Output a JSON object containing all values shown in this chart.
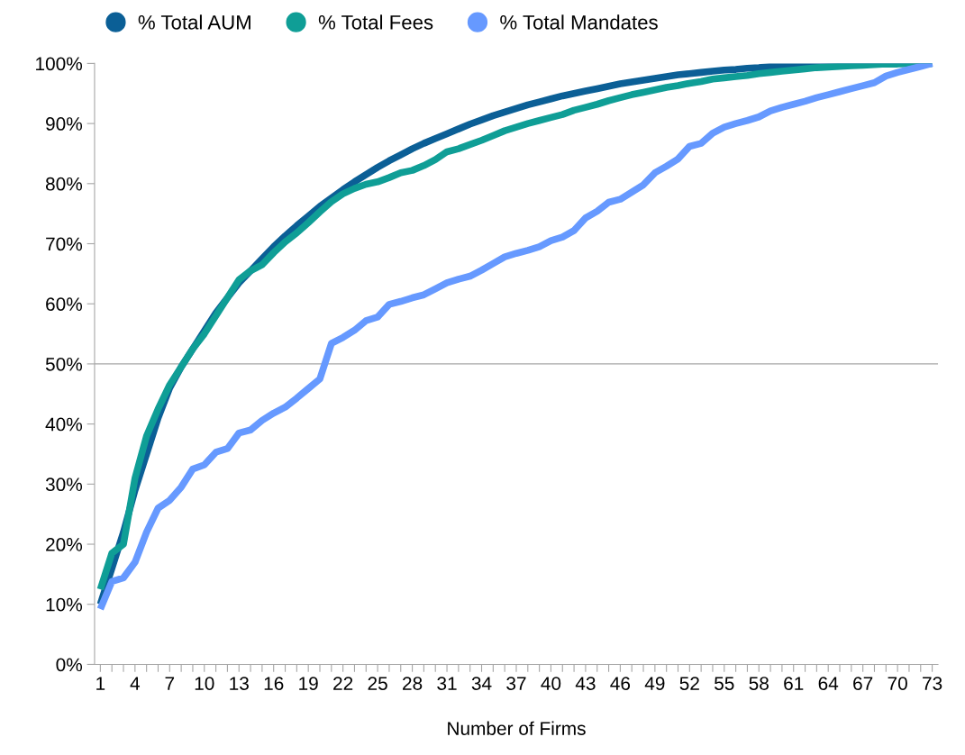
{
  "chart_data": {
    "type": "line",
    "xlabel": "Number of Firms",
    "categories": [
      "1",
      null,
      null,
      "4",
      null,
      null,
      "7",
      null,
      null,
      "10",
      null,
      null,
      "13",
      null,
      null,
      "16",
      null,
      null,
      "19",
      null,
      null,
      "22",
      null,
      null,
      "25",
      null,
      null,
      "28",
      null,
      null,
      "31",
      null,
      null,
      "34",
      null,
      null,
      "37",
      null,
      null,
      "40",
      null,
      null,
      "43",
      null,
      null,
      "46",
      null,
      null,
      "49",
      null,
      null,
      "52",
      null,
      null,
      "55",
      null,
      null,
      "58",
      null,
      null,
      "61",
      null,
      null,
      "64",
      null,
      null,
      "67",
      null,
      null,
      "70",
      null,
      null,
      "73"
    ],
    "ylim": [
      0,
      100
    ],
    "yticks": [
      {
        "value": 0,
        "label": "0%"
      },
      {
        "value": 10,
        "label": "10%"
      },
      {
        "value": 20,
        "label": "20%"
      },
      {
        "value": 30,
        "label": "30%"
      },
      {
        "value": 40,
        "label": "40%"
      },
      {
        "value": 50,
        "label": "50%"
      },
      {
        "value": 60,
        "label": "60%"
      },
      {
        "value": 70,
        "label": "70%"
      },
      {
        "value": 80,
        "label": "80%"
      },
      {
        "value": 90,
        "label": "90%"
      },
      {
        "value": 100,
        "label": "100%"
      }
    ],
    "grid": false,
    "legend": "top left",
    "marker": "none",
    "line_style": "solid",
    "ref_lines": [
      {
        "axis": "y",
        "value": 50,
        "color": "#a6a6a6"
      }
    ],
    "series": [
      {
        "name": "% Total AUM",
        "color": "#0b5f96",
        "values": [
          10,
          16,
          22,
          29,
          35,
          41,
          46,
          49.5,
          52.5,
          55.5,
          58.5,
          61,
          63.5,
          65.5,
          67.5,
          69.5,
          71.3,
          73,
          74.6,
          76.2,
          77.6,
          79,
          80.3,
          81.5,
          82.7,
          83.8,
          84.8,
          85.8,
          86.7,
          87.5,
          88.3,
          89.1,
          89.9,
          90.6,
          91.3,
          91.9,
          92.5,
          93.1,
          93.6,
          94.1,
          94.6,
          95,
          95.4,
          95.8,
          96.2,
          96.6,
          96.9,
          97.2,
          97.5,
          97.8,
          98.1,
          98.3,
          98.5,
          98.7,
          98.9,
          99,
          99.2,
          99.3,
          99.5,
          99.6,
          99.7,
          99.7,
          99.8,
          99.8,
          99.8,
          99.9,
          99.9,
          99.9,
          99.9,
          100,
          100,
          100,
          100
        ]
      },
      {
        "name": "% Total Fees",
        "color": "#0f9e96",
        "values": [
          12.5,
          18.5,
          20,
          31,
          38,
          42.5,
          46.5,
          49.5,
          52.5,
          55,
          58,
          61,
          64,
          65.5,
          66.5,
          68.5,
          70.3,
          71.8,
          73.5,
          75.3,
          77,
          78.3,
          79.2,
          79.9,
          80.3,
          81,
          81.8,
          82.2,
          83,
          84,
          85.3,
          85.8,
          86.5,
          87.2,
          88,
          88.8,
          89.4,
          90,
          90.5,
          91,
          91.5,
          92.2,
          92.7,
          93.2,
          93.8,
          94.3,
          94.8,
          95.2,
          95.6,
          96,
          96.3,
          96.7,
          97,
          97.4,
          97.6,
          97.8,
          98,
          98.3,
          98.5,
          98.7,
          98.9,
          99.1,
          99.3,
          99.4,
          99.5,
          99.6,
          99.7,
          99.8,
          99.9,
          99.9,
          100,
          100,
          100
        ]
      },
      {
        "name": "% Total Mandates",
        "color": "#6699ff",
        "values": [
          9.2,
          13.8,
          14.4,
          17,
          22,
          26,
          27.3,
          29.5,
          32.5,
          33.2,
          35.3,
          35.9,
          38.5,
          39,
          40.6,
          41.8,
          42.8,
          44.3,
          45.9,
          47.5,
          53.4,
          54.4,
          55.6,
          57.2,
          57.8,
          59.9,
          60.4,
          61,
          61.5,
          62.5,
          63.5,
          64.1,
          64.6,
          65.6,
          66.7,
          67.8,
          68.4,
          68.9,
          69.5,
          70.5,
          71.1,
          72.2,
          74.3,
          75.4,
          76.9,
          77.4,
          78.6,
          79.8,
          81.8,
          82.9,
          84.1,
          86.2,
          86.7,
          88.4,
          89.4,
          90,
          90.5,
          91.1,
          92.1,
          92.7,
          93.2,
          93.7,
          94.3,
          94.8,
          95.3,
          95.8,
          96.3,
          96.8,
          97.9,
          98.5,
          99,
          99.5,
          100
        ]
      }
    ]
  }
}
